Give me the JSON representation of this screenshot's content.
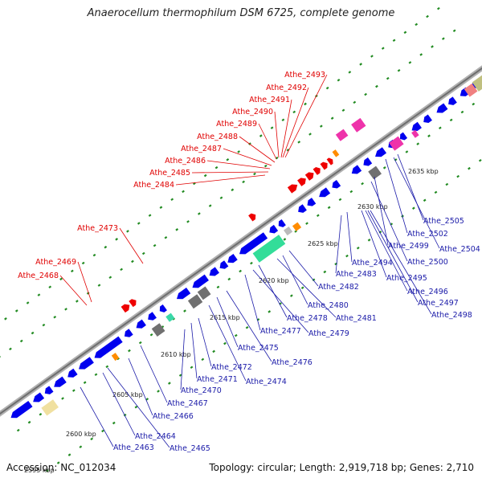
{
  "title": "Anaerocellum thermophilum DSM 6725, complete genome",
  "footer": {
    "accession": "Accession: NC_012034",
    "summary": "Topology: circular; Length: 2,919,718 bp; Genes: 2,710"
  },
  "colors": {
    "forward_cds": "#0000ee",
    "reverse_cds": "#ee0000",
    "rna": "#ff8c00",
    "backbone": "#8a8a8a",
    "tick": "#228b22",
    "label_red": "#e00000",
    "label_blue": "#1a1aa8"
  },
  "kbp_ticks": [
    "2595 kbp",
    "2600 kbp",
    "2605 kbp",
    "2610 kbp",
    "2615 kbp",
    "2620 kbp",
    "2625 kbp",
    "2630 kbp",
    "2635 kbp"
  ],
  "red_labels": [
    "Athe_2493",
    "Athe_2492",
    "Athe_2491",
    "Athe_2490",
    "Athe_2489",
    "Athe_2488",
    "Athe_2487",
    "Athe_2486",
    "Athe_2485",
    "Athe_2484",
    "Athe_2473",
    "Athe_2469",
    "Athe_2468"
  ],
  "blue_labels": [
    "Athe_2505",
    "Athe_2502",
    "Athe_2504",
    "Athe_2499",
    "Athe_2500",
    "Athe_2494",
    "Athe_2483",
    "Athe_2495",
    "Athe_2496",
    "Athe_2497",
    "Athe_2498",
    "Athe_2482",
    "Athe_2480",
    "Athe_2481",
    "Athe_2478",
    "Athe_2477",
    "Athe_2479",
    "Athe_2475",
    "Athe_2476",
    "Athe_2472",
    "Athe_2474",
    "Athe_2471",
    "Athe_2470",
    "Athe_2467",
    "Athe_2466",
    "Athe_2464",
    "Athe_2465",
    "Athe_2463"
  ]
}
